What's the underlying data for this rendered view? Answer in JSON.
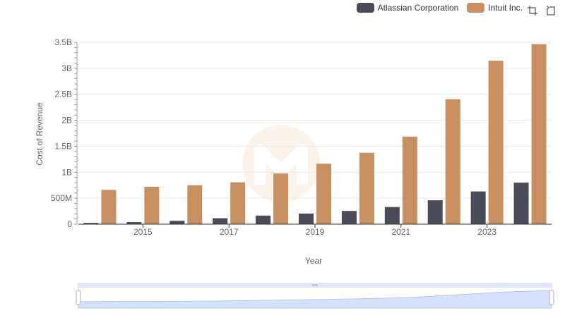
{
  "toolbox": {
    "zoom_icon": "zoom-icon",
    "restore_icon": "restore-icon"
  },
  "colors": {
    "atlassian": "#4a4a58",
    "intuit": "#c89060",
    "grid": "#e6e9ef",
    "axis": "#333333",
    "slider_fill": "#d6e1fb",
    "slider_border": "#cdd5e6"
  },
  "chart_data": {
    "type": "bar",
    "xlabel": "Year",
    "ylabel": "Cost of Revenue",
    "categories": [
      "2014",
      "2015",
      "2016",
      "2017",
      "2018",
      "2019",
      "2020",
      "2021",
      "2022",
      "2023",
      "2024"
    ],
    "x_tick_labels": [
      "2015",
      "2017",
      "2019",
      "2021",
      "2023"
    ],
    "y_ticks": [
      0,
      500000000,
      1000000000,
      1500000000,
      2000000000,
      2500000000,
      3000000000,
      3500000000
    ],
    "y_tick_labels": [
      "0",
      "500M",
      "1B",
      "1.5B",
      "2B",
      "2.5B",
      "3B",
      "3.5B"
    ],
    "ylim": [
      0,
      3500000000
    ],
    "grid": true,
    "legend_position": "top-right",
    "series": [
      {
        "name": "Atlassian Corporation",
        "color": "#4a4a58",
        "values": [
          25000000,
          40000000,
          65000000,
          115000000,
          165000000,
          205000000,
          255000000,
          330000000,
          460000000,
          630000000,
          800000000
        ]
      },
      {
        "name": "Intuit Inc.",
        "color": "#c89060",
        "values": [
          660000000,
          720000000,
          750000000,
          805000000,
          975000000,
          1165000000,
          1375000000,
          1685000000,
          2405000000,
          3145000000,
          3465000000
        ]
      }
    ]
  }
}
